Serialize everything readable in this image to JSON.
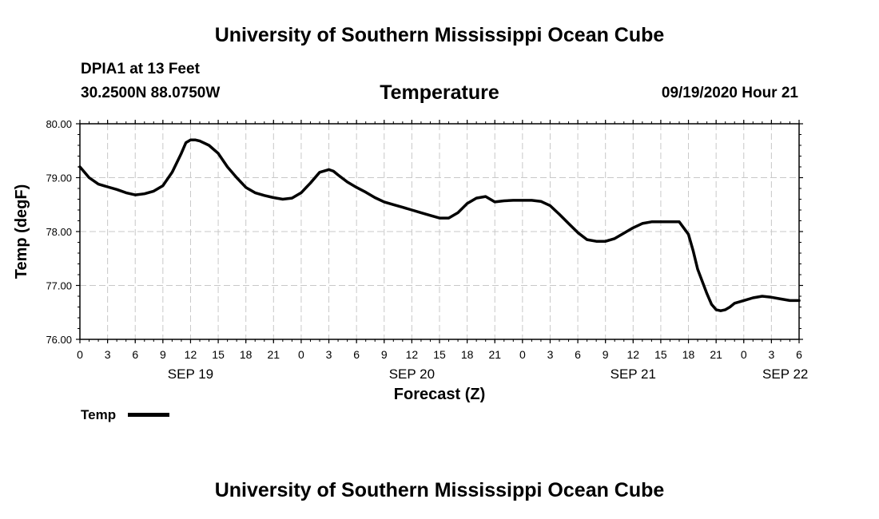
{
  "header": {
    "title_top": "University of Southern Mississippi Ocean Cube",
    "station": "DPIA1 at 13 Feet",
    "coords": "30.2500N 88.0750W",
    "chart_title": "Temperature",
    "datetime": "09/19/2020 Hour 21"
  },
  "footer": {
    "title_bottom": "University of Southern Mississippi Ocean Cube"
  },
  "legend": {
    "label": "Temp"
  },
  "colors": {
    "line": "#000000",
    "grid": "#c8c8c8",
    "background": "#ffffff"
  },
  "chart_data": {
    "type": "line",
    "title": "Temperature",
    "xlabel": "Forecast (Z)",
    "ylabel": "Temp (degF)",
    "xlim": [
      0,
      78
    ],
    "ylim": [
      76.0,
      80.0
    ],
    "yticks": [
      76.0,
      77.0,
      78.0,
      79.0,
      80.0
    ],
    "ytick_labels": [
      "76.00",
      "77.00",
      "78.00",
      "79.00",
      "80.00"
    ],
    "xtick_hours": [
      0,
      3,
      6,
      9,
      12,
      15,
      18,
      21,
      24,
      27,
      30,
      33,
      36,
      39,
      42,
      45,
      48,
      51,
      54,
      57,
      60,
      63,
      66,
      69,
      72,
      75,
      78
    ],
    "xtick_labels": [
      "0",
      "3",
      "6",
      "9",
      "12",
      "15",
      "18",
      "21",
      "0",
      "3",
      "6",
      "9",
      "12",
      "15",
      "18",
      "21",
      "0",
      "3",
      "6",
      "9",
      "12",
      "15",
      "18",
      "21",
      "0",
      "3",
      "6"
    ],
    "date_labels": [
      {
        "hour": 12,
        "label": "SEP 19"
      },
      {
        "hour": 36,
        "label": "SEP 20"
      },
      {
        "hour": 60,
        "label": "SEP 21"
      },
      {
        "hour": 76.5,
        "label": "SEP 22"
      }
    ],
    "series": [
      {
        "name": "Temp",
        "x": [
          0,
          0.5,
          1,
          2,
          3,
          4,
          5,
          6,
          7,
          8,
          9,
          10,
          11,
          11.5,
          12,
          12.5,
          13,
          14,
          15,
          16,
          17,
          18,
          19,
          20,
          21,
          22,
          23,
          24,
          25,
          26,
          27,
          27.5,
          28,
          29,
          30,
          31,
          32,
          33,
          34,
          35,
          36,
          37,
          38,
          39,
          40,
          41,
          42,
          43,
          44,
          45,
          46,
          47,
          48,
          49,
          50,
          51,
          52,
          53,
          54,
          55,
          56,
          57,
          58,
          59,
          60,
          61,
          62,
          63,
          64,
          65,
          66,
          66.5,
          67,
          68,
          68.5,
          69,
          69.5,
          70,
          70.5,
          71,
          72,
          73,
          74,
          75,
          76,
          77,
          78
        ],
        "values": [
          79.2,
          79.1,
          79.0,
          78.88,
          78.83,
          78.78,
          78.72,
          78.68,
          78.7,
          78.75,
          78.85,
          79.1,
          79.45,
          79.65,
          79.7,
          79.7,
          79.68,
          79.6,
          79.45,
          79.2,
          79.0,
          78.82,
          78.72,
          78.67,
          78.63,
          78.6,
          78.62,
          78.72,
          78.9,
          79.1,
          79.15,
          79.12,
          79.05,
          78.92,
          78.82,
          78.73,
          78.63,
          78.55,
          78.5,
          78.45,
          78.4,
          78.35,
          78.3,
          78.25,
          78.25,
          78.35,
          78.52,
          78.62,
          78.65,
          78.55,
          78.57,
          78.58,
          78.58,
          78.58,
          78.56,
          78.48,
          78.32,
          78.15,
          77.98,
          77.85,
          77.82,
          77.82,
          77.87,
          77.97,
          78.07,
          78.15,
          78.18,
          78.18,
          78.18,
          78.18,
          77.95,
          77.65,
          77.3,
          76.85,
          76.65,
          76.55,
          76.53,
          76.55,
          76.6,
          76.67,
          76.72,
          76.77,
          76.8,
          76.78,
          76.75,
          76.72,
          76.72
        ]
      }
    ]
  }
}
